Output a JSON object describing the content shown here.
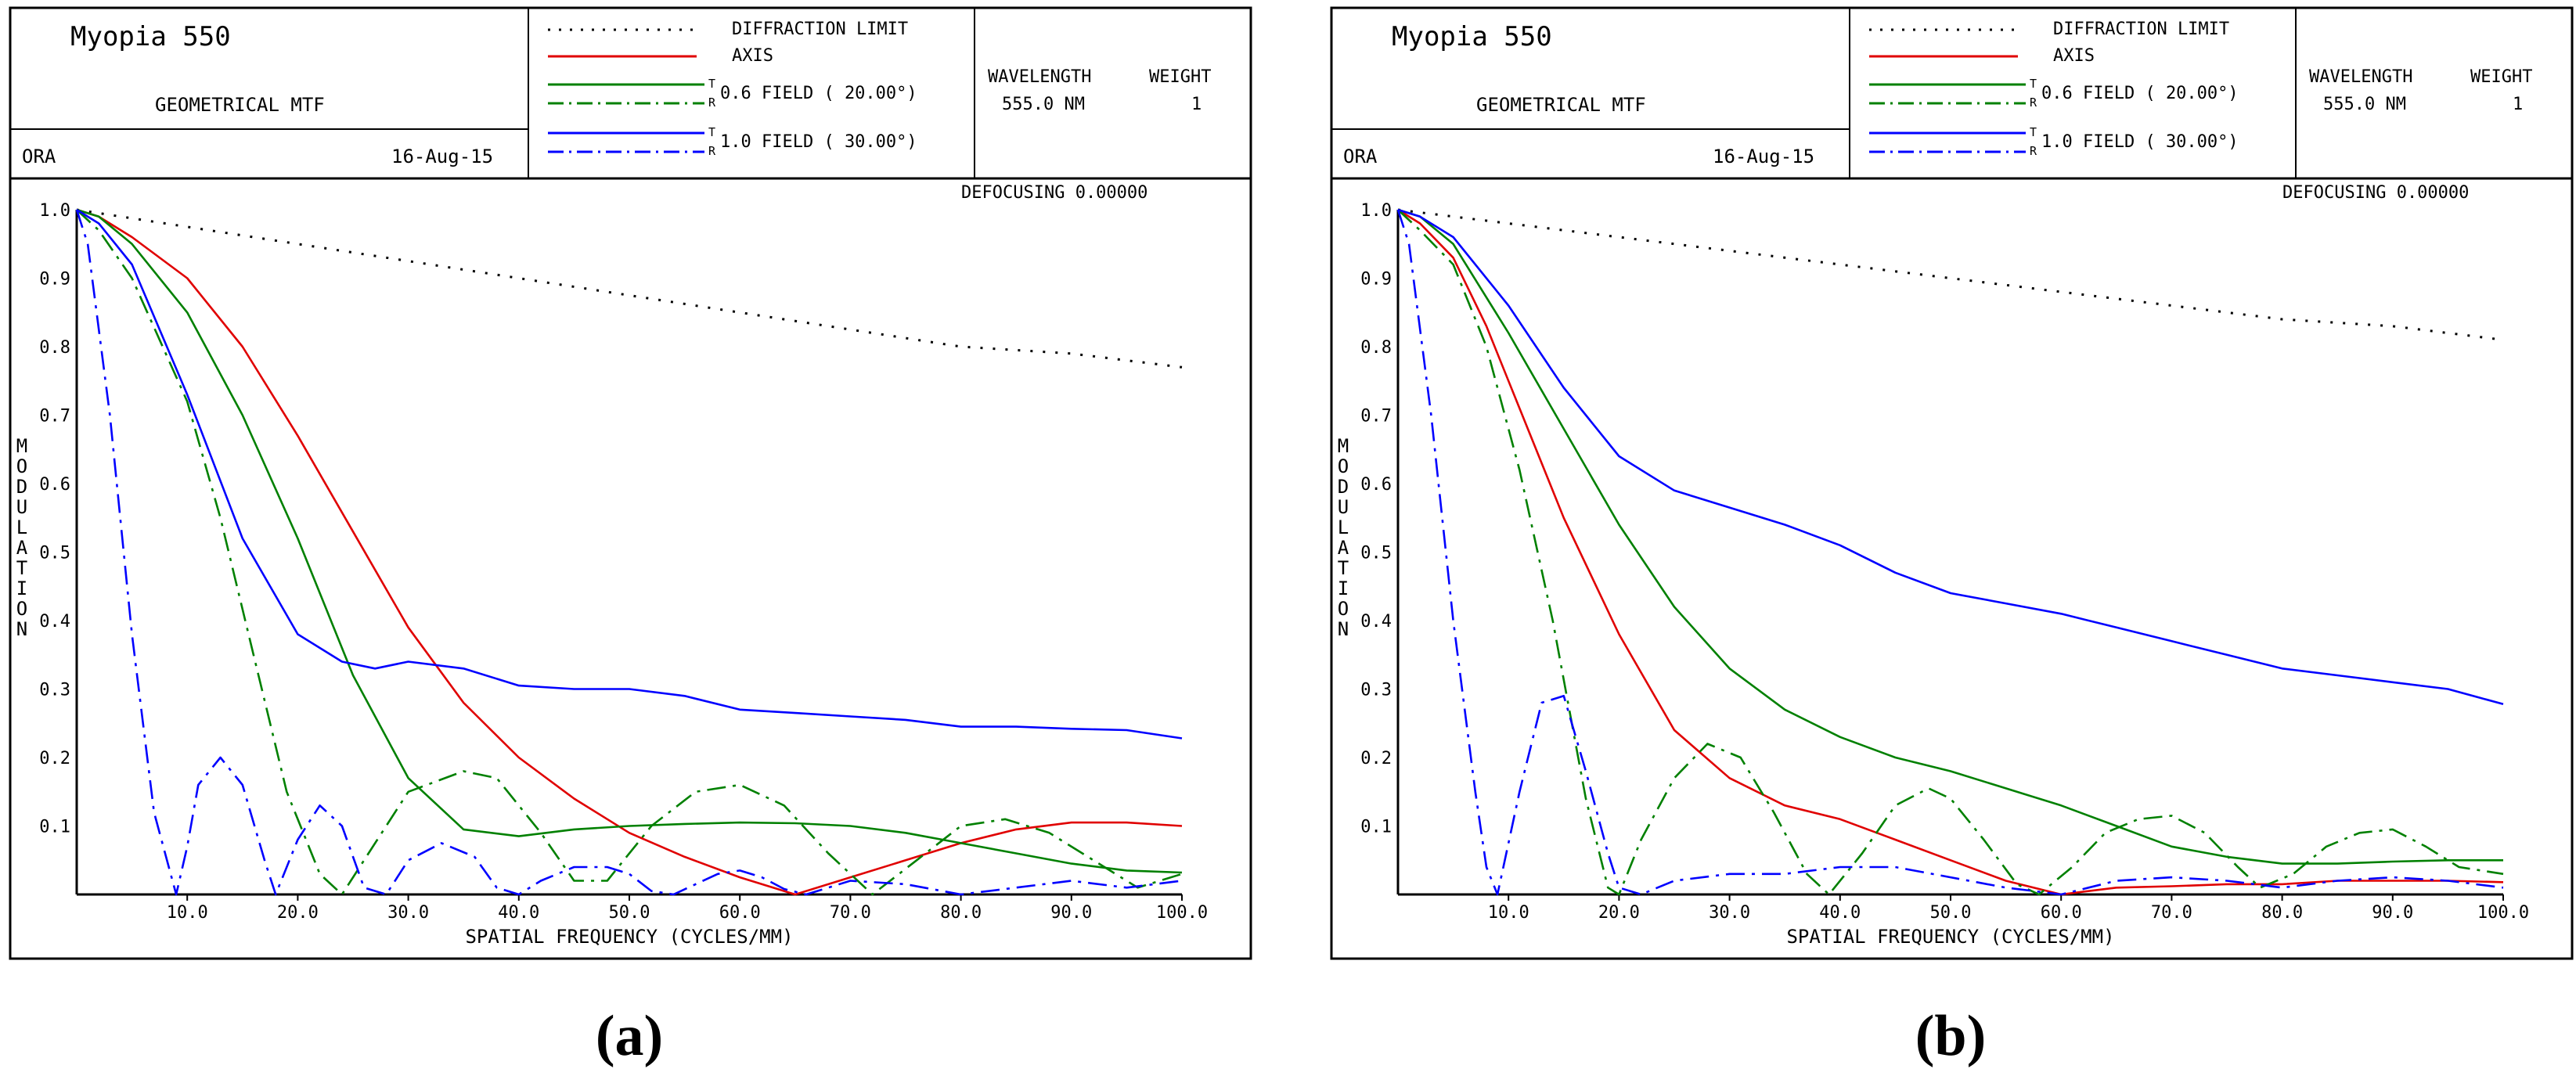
{
  "panels": [
    {
      "header": {
        "title": "Myopia  550",
        "subtitle": "GEOMETRICAL MTF",
        "org": "ORA",
        "date": "16-Aug-15",
        "legend": {
          "diffraction": "DIFFRACTION LIMIT",
          "axis": "AXIS",
          "field1": "0.6 FIELD ( 20.00°)",
          "field2": "1.0 FIELD ( 30.00°)",
          "t": "T",
          "r": "R"
        },
        "wavelength_label": "WAVELENGTH",
        "weight_label": "WEIGHT",
        "wavelength_value": "555.0 NM",
        "weight_value": "1"
      },
      "defocusing": "DEFOCUSING  0.00000",
      "caption": "(a)"
    },
    {
      "header": {
        "title": "Myopia  550",
        "subtitle": "GEOMETRICAL MTF",
        "org": "ORA",
        "date": "16-Aug-15",
        "legend": {
          "diffraction": "DIFFRACTION LIMIT",
          "axis": "AXIS",
          "field1": "0.6 FIELD ( 20.00°)",
          "field2": "1.0 FIELD ( 30.00°)",
          "t": "T",
          "r": "R"
        },
        "wavelength_label": "WAVELENGTH",
        "weight_label": "WEIGHT",
        "wavelength_value": "555.0 NM",
        "weight_value": "1"
      },
      "defocusing": "DEFOCUSING  0.00000",
      "caption": "(b)"
    }
  ],
  "chart_data": [
    {
      "type": "line",
      "title": "GEOMETRICAL MTF",
      "xlabel": "SPATIAL FREQUENCY (CYCLES/MM)",
      "ylabel": "MODULATION",
      "xlim": [
        0,
        100
      ],
      "ylim": [
        0,
        1
      ],
      "xticks": [
        "10.0",
        "20.0",
        "30.0",
        "40.0",
        "50.0",
        "60.0",
        "70.0",
        "80.0",
        "90.0",
        "100.0"
      ],
      "yticks": [
        "0.1",
        "0.2",
        "0.3",
        "0.4",
        "0.5",
        "0.6",
        "0.7",
        "0.8",
        "0.9",
        "1.0"
      ],
      "colors": {
        "diffraction": "#000000",
        "axis": "#e00000",
        "field1": "#008000",
        "field2": "#0000ff"
      },
      "series": [
        {
          "name": "DIFFRACTION LIMIT",
          "key": "diffraction",
          "style": "dotted",
          "x": [
            0,
            10,
            20,
            30,
            40,
            50,
            60,
            70,
            80,
            90,
            100
          ],
          "y": [
            1.0,
            0.975,
            0.95,
            0.925,
            0.9,
            0.875,
            0.85,
            0.825,
            0.8,
            0.79,
            0.77
          ]
        },
        {
          "name": "AXIS",
          "key": "axis",
          "style": "solid",
          "x": [
            0,
            2,
            5,
            10,
            15,
            20,
            25,
            30,
            35,
            40,
            45,
            50,
            55,
            60,
            65,
            70,
            75,
            80,
            85,
            90,
            95,
            100
          ],
          "y": [
            1.0,
            0.99,
            0.96,
            0.9,
            0.8,
            0.67,
            0.53,
            0.39,
            0.28,
            0.2,
            0.14,
            0.09,
            0.055,
            0.025,
            0.0,
            0.025,
            0.05,
            0.075,
            0.095,
            0.105,
            0.105,
            0.1
          ]
        },
        {
          "name": "0.6 FIELD T",
          "key": "field1",
          "style": "solid",
          "x": [
            0,
            2,
            5,
            10,
            15,
            20,
            25,
            30,
            35,
            40,
            45,
            50,
            55,
            60,
            65,
            70,
            75,
            80,
            85,
            90,
            95,
            100
          ],
          "y": [
            1.0,
            0.99,
            0.95,
            0.85,
            0.7,
            0.52,
            0.32,
            0.17,
            0.095,
            0.085,
            0.095,
            0.1,
            0.103,
            0.105,
            0.104,
            0.1,
            0.09,
            0.075,
            0.06,
            0.045,
            0.035,
            0.032
          ]
        },
        {
          "name": "0.6 FIELD R",
          "key": "field1",
          "style": "dashdot",
          "x": [
            0,
            2,
            5,
            10,
            13,
            16,
            19,
            22,
            24,
            26,
            30,
            35,
            38,
            42,
            45,
            48,
            52,
            56,
            60,
            64,
            68,
            72,
            76,
            80,
            84,
            88,
            92,
            96,
            100
          ],
          "y": [
            1.0,
            0.97,
            0.9,
            0.72,
            0.55,
            0.35,
            0.15,
            0.03,
            0.0,
            0.05,
            0.15,
            0.18,
            0.17,
            0.09,
            0.02,
            0.02,
            0.1,
            0.15,
            0.16,
            0.13,
            0.06,
            0.0,
            0.05,
            0.1,
            0.11,
            0.09,
            0.05,
            0.01,
            0.03
          ]
        },
        {
          "name": "1.0 FIELD T",
          "key": "field2",
          "style": "solid",
          "x": [
            0,
            2,
            5,
            10,
            15,
            20,
            24,
            27,
            30,
            35,
            40,
            45,
            50,
            55,
            60,
            65,
            70,
            75,
            80,
            85,
            90,
            95,
            100
          ],
          "y": [
            1.0,
            0.98,
            0.92,
            0.73,
            0.52,
            0.38,
            0.34,
            0.33,
            0.34,
            0.33,
            0.305,
            0.3,
            0.3,
            0.29,
            0.27,
            0.265,
            0.26,
            0.255,
            0.245,
            0.245,
            0.242,
            0.24,
            0.228
          ]
        },
        {
          "name": "1.0 FIELD R",
          "key": "field2",
          "style": "dashdot",
          "x": [
            0,
            1,
            3,
            5,
            7,
            9,
            10,
            11,
            13,
            15,
            17,
            18,
            20,
            22,
            24,
            26,
            28,
            30,
            33,
            36,
            38,
            40,
            42,
            45,
            48,
            50,
            52,
            54,
            56,
            58,
            60,
            62,
            64,
            66,
            68,
            70,
            75,
            80,
            85,
            90,
            95,
            100
          ],
          "y": [
            1.0,
            0.95,
            0.7,
            0.38,
            0.12,
            0.0,
            0.07,
            0.16,
            0.2,
            0.16,
            0.05,
            0.0,
            0.08,
            0.13,
            0.1,
            0.01,
            0.0,
            0.05,
            0.075,
            0.055,
            0.01,
            0.0,
            0.02,
            0.04,
            0.04,
            0.03,
            0.005,
            0.0,
            0.015,
            0.03,
            0.035,
            0.025,
            0.008,
            0.0,
            0.01,
            0.02,
            0.015,
            0.0,
            0.01,
            0.02,
            0.01,
            0.02
          ]
        }
      ]
    },
    {
      "type": "line",
      "title": "GEOMETRICAL MTF",
      "xlabel": "SPATIAL FREQUENCY (CYCLES/MM)",
      "ylabel": "MODULATION",
      "xlim": [
        0,
        100
      ],
      "ylim": [
        0,
        1
      ],
      "xticks": [
        "10.0",
        "20.0",
        "30.0",
        "40.0",
        "50.0",
        "60.0",
        "70.0",
        "80.0",
        "90.0",
        "100.0"
      ],
      "yticks": [
        "0.1",
        "0.2",
        "0.3",
        "0.4",
        "0.5",
        "0.6",
        "0.7",
        "0.8",
        "0.9",
        "1.0"
      ],
      "colors": {
        "diffraction": "#000000",
        "axis": "#e00000",
        "field1": "#008000",
        "field2": "#0000ff"
      },
      "series": [
        {
          "name": "DIFFRACTION LIMIT",
          "key": "diffraction",
          "style": "dotted",
          "x": [
            0,
            10,
            20,
            30,
            40,
            50,
            60,
            70,
            80,
            90,
            100
          ],
          "y": [
            1.0,
            0.98,
            0.96,
            0.94,
            0.92,
            0.9,
            0.88,
            0.86,
            0.84,
            0.83,
            0.81
          ]
        },
        {
          "name": "AXIS",
          "key": "axis",
          "style": "solid",
          "x": [
            0,
            2,
            5,
            8,
            10,
            15,
            20,
            25,
            30,
            35,
            40,
            45,
            50,
            55,
            60,
            65,
            70,
            75,
            80,
            85,
            90,
            95,
            100
          ],
          "y": [
            1.0,
            0.98,
            0.93,
            0.83,
            0.75,
            0.55,
            0.38,
            0.24,
            0.17,
            0.13,
            0.11,
            0.08,
            0.05,
            0.02,
            0.0,
            0.01,
            0.012,
            0.015,
            0.015,
            0.02,
            0.02,
            0.02,
            0.018
          ]
        },
        {
          "name": "0.6 FIELD T",
          "key": "field1",
          "style": "solid",
          "x": [
            0,
            2,
            5,
            10,
            15,
            20,
            25,
            30,
            35,
            40,
            45,
            50,
            55,
            60,
            65,
            70,
            75,
            80,
            85,
            90,
            95,
            100
          ],
          "y": [
            1.0,
            0.99,
            0.95,
            0.82,
            0.68,
            0.54,
            0.42,
            0.33,
            0.27,
            0.23,
            0.2,
            0.18,
            0.155,
            0.13,
            0.1,
            0.07,
            0.055,
            0.045,
            0.045,
            0.048,
            0.05,
            0.05
          ]
        },
        {
          "name": "0.6 FIELD R",
          "key": "field1",
          "style": "dashdot",
          "x": [
            0,
            2,
            5,
            8,
            11,
            14,
            17,
            19,
            20,
            22,
            25,
            28,
            31,
            34,
            37,
            39,
            42,
            45,
            48,
            50,
            53,
            56,
            58,
            61,
            64,
            67,
            70,
            73,
            76,
            78,
            81,
            84,
            87,
            90,
            93,
            96,
            100
          ],
          "y": [
            1.0,
            0.97,
            0.92,
            0.8,
            0.62,
            0.4,
            0.14,
            0.01,
            0.0,
            0.08,
            0.17,
            0.22,
            0.2,
            0.12,
            0.03,
            0.0,
            0.06,
            0.13,
            0.155,
            0.14,
            0.08,
            0.015,
            0.0,
            0.04,
            0.09,
            0.11,
            0.115,
            0.09,
            0.04,
            0.01,
            0.03,
            0.07,
            0.09,
            0.095,
            0.07,
            0.04,
            0.03
          ]
        },
        {
          "name": "1.0 FIELD T",
          "key": "field2",
          "style": "solid",
          "x": [
            0,
            2,
            5,
            10,
            15,
            20,
            25,
            30,
            35,
            40,
            45,
            50,
            55,
            60,
            65,
            70,
            75,
            80,
            85,
            90,
            95,
            100
          ],
          "y": [
            1.0,
            0.99,
            0.96,
            0.86,
            0.74,
            0.64,
            0.59,
            0.565,
            0.54,
            0.51,
            0.47,
            0.44,
            0.425,
            0.41,
            0.39,
            0.37,
            0.35,
            0.33,
            0.32,
            0.31,
            0.3,
            0.278
          ]
        },
        {
          "name": "1.0 FIELD R",
          "key": "field2",
          "style": "dashdot",
          "x": [
            0,
            1,
            3,
            5,
            7,
            8,
            9,
            11,
            13,
            15,
            17,
            19,
            20,
            22,
            25,
            30,
            35,
            40,
            45,
            50,
            55,
            60,
            65,
            70,
            75,
            80,
            85,
            90,
            95,
            100
          ],
          "y": [
            1.0,
            0.95,
            0.7,
            0.4,
            0.15,
            0.04,
            0.0,
            0.15,
            0.28,
            0.29,
            0.18,
            0.06,
            0.01,
            0.0,
            0.02,
            0.03,
            0.03,
            0.04,
            0.04,
            0.025,
            0.01,
            0.0,
            0.02,
            0.025,
            0.02,
            0.01,
            0.02,
            0.025,
            0.02,
            0.01
          ]
        }
      ]
    }
  ]
}
